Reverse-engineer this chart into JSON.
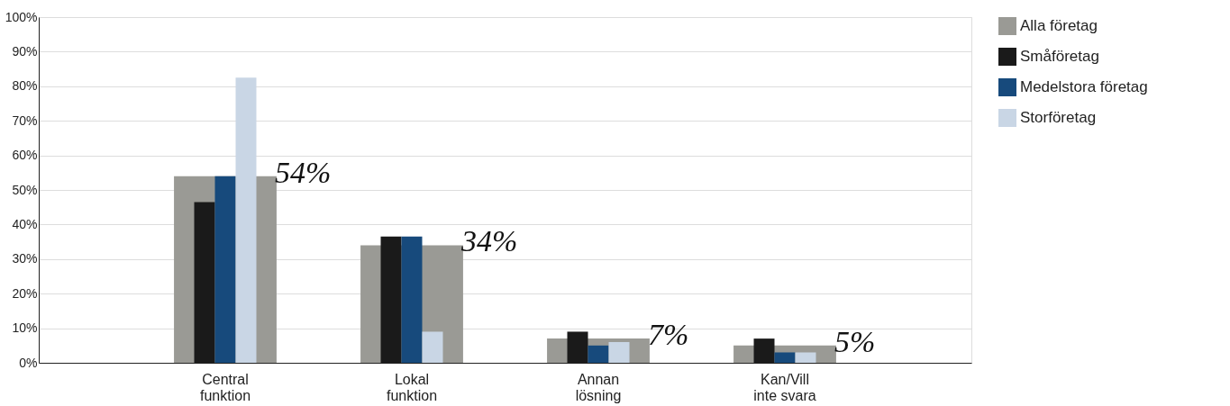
{
  "chart_data": {
    "type": "bar",
    "categories": [
      "Central\nfunktion",
      "Lokal\nfunktion",
      "Annan\nlösning",
      "Kan/Vill\ninte svara"
    ],
    "series": [
      {
        "name": "Alla företag",
        "color": "#9a9a95",
        "values": [
          54,
          34,
          7,
          5
        ],
        "value_labels": [
          "54%",
          "34%",
          "7%",
          "5%"
        ]
      },
      {
        "name": "Småföretag",
        "color": "#1a1a1a",
        "values": [
          46.5,
          36.5,
          9,
          7
        ]
      },
      {
        "name": "Medelstora företag",
        "color": "#174a7c",
        "values": [
          54,
          36.5,
          5,
          3
        ]
      },
      {
        "name": "Storföretag",
        "color": "#c9d6e5",
        "values": [
          82.5,
          9,
          6,
          3
        ]
      }
    ],
    "ylim": [
      0,
      100
    ],
    "yticks": [
      {
        "value": 0,
        "label": "0%"
      },
      {
        "value": 10,
        "label": "10%"
      },
      {
        "value": 20,
        "label": "20%"
      },
      {
        "value": 30,
        "label": "30%"
      },
      {
        "value": 40,
        "label": "40%"
      },
      {
        "value": 50,
        "label": "50%"
      },
      {
        "value": 60,
        "label": "60%"
      },
      {
        "value": 70,
        "label": "70%"
      },
      {
        "value": 80,
        "label": "80%"
      },
      {
        "value": 90,
        "label": "90%"
      },
      {
        "value": 100,
        "label": "100%"
      }
    ],
    "grid": "y",
    "legend": "right"
  }
}
